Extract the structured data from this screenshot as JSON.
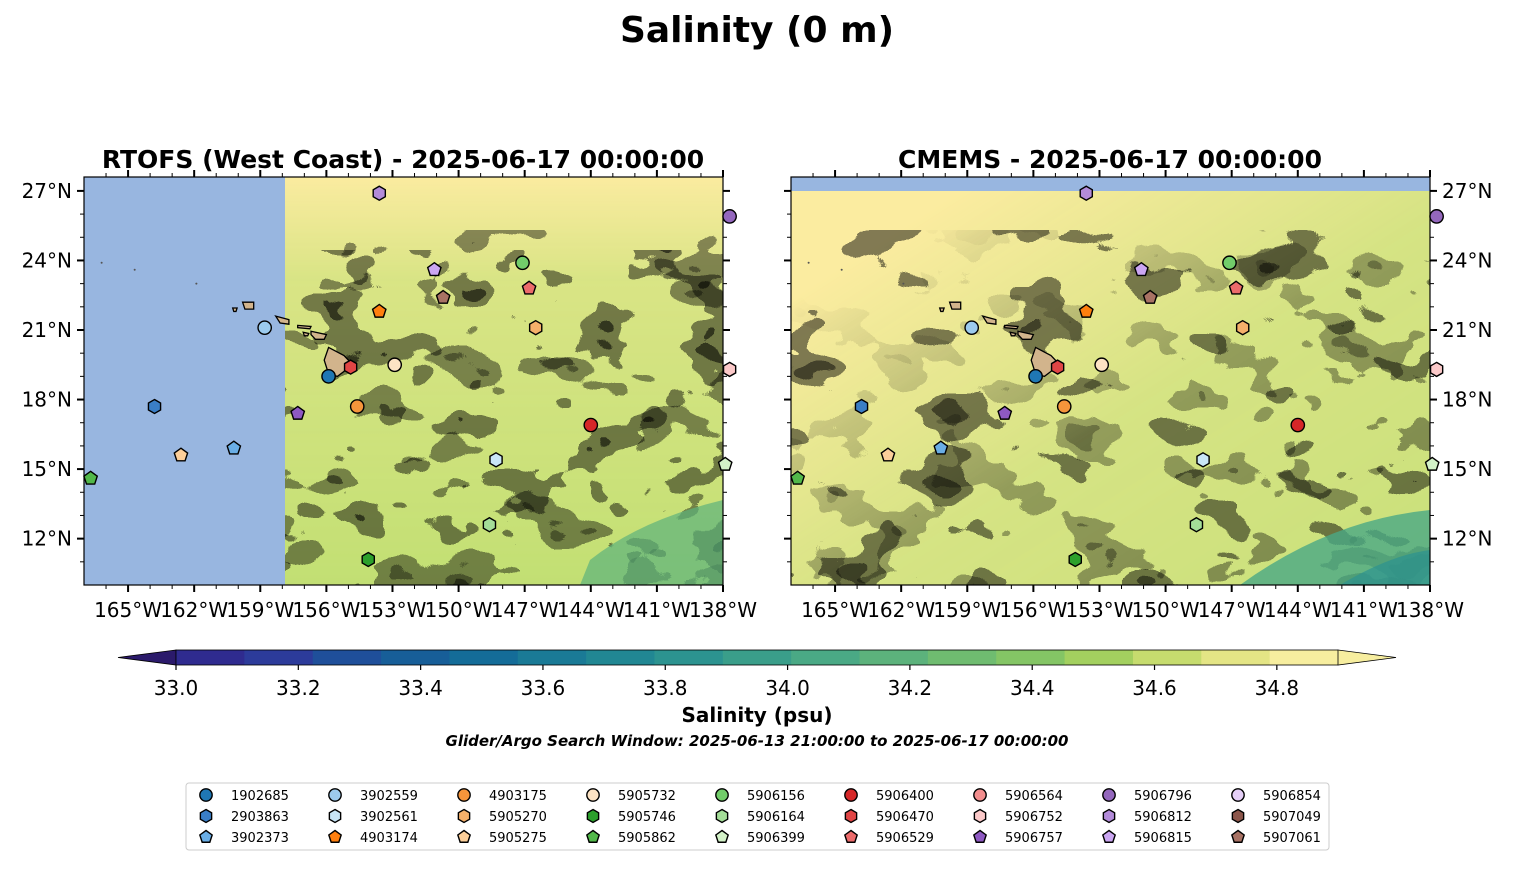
{
  "suptitle": "Salinity (0 m)",
  "panels": [
    {
      "title": "RTOFS (West Coast) - 2025-06-17 00:00:00",
      "tick_side": "left",
      "data_extent_lon": [
        -157.5,
        -137.8
      ]
    },
    {
      "title": "CMEMS - 2025-06-17 00:00:00",
      "tick_side": "right",
      "data_extent_lat_max": 27.1
    }
  ],
  "colorbar": {
    "label": "Salinity (psu)",
    "ticks": [
      "33.0",
      "33.2",
      "33.4",
      "33.6",
      "33.8",
      "34.0",
      "34.2",
      "34.4",
      "34.6",
      "34.8"
    ]
  },
  "caption": "Glider/Argo Search Window: 2025-06-13 21:00:00 to 2025-06-17 00:00:00",
  "colors": {
    "ocean_nodata": "#98b6e0",
    "land": "#d2b48c",
    "high_salinity": "#fbeca0",
    "mid_salinity": "#bcdf76",
    "low_salinity": "#8ccf63"
  },
  "chart_data": {
    "type": "map",
    "variable": "Salinity",
    "unit": "psu",
    "depth_m": 0,
    "lon_range": [
      -167,
      -138
    ],
    "lat_range": [
      10,
      27.6
    ],
    "x_tick_labels": [
      "165°W",
      "162°W",
      "159°W",
      "156°W",
      "153°W",
      "150°W",
      "147°W",
      "144°W",
      "141°W",
      "138°W"
    ],
    "x_tick_values": [
      -165,
      -162,
      -159,
      -156,
      -153,
      -150,
      -147,
      -144,
      -141,
      -138
    ],
    "y_tick_labels": [
      "27°N",
      "24°N",
      "21°N",
      "18°N",
      "15°N",
      "12°N"
    ],
    "y_tick_values": [
      27,
      24,
      21,
      18,
      15,
      12
    ],
    "colorbar_range": [
      33.0,
      34.9
    ],
    "colorbar_levels": [
      "#2b1a6b",
      "#2f2b8f",
      "#2c3b9a",
      "#1f4f9a",
      "#175e98",
      "#146c98",
      "#1a7a96",
      "#218793",
      "#2c9390",
      "#3a9e8a",
      "#4aa985",
      "#5cb27c",
      "#6fbc70",
      "#84c565",
      "#a3d05f",
      "#c6dc6e",
      "#e4e585",
      "#f7ee9f"
    ],
    "platforms": [
      {
        "id": "1902685",
        "marker": "circle",
        "color": "#1f77b4",
        "lon": -155.9,
        "lat": 19.0
      },
      {
        "id": "2903863",
        "marker": "hexagon",
        "color": "#3a7ec6",
        "lon": -163.8,
        "lat": 17.7
      },
      {
        "id": "3902373",
        "marker": "pentagon",
        "color": "#6aaee6",
        "lon": -160.2,
        "lat": 15.9
      },
      {
        "id": "3902559",
        "marker": "circle",
        "color": "#9ccbee",
        "lon": -158.8,
        "lat": 21.1
      },
      {
        "id": "3902561",
        "marker": "hexagon",
        "color": "#c9e6f7",
        "lon": -148.3,
        "lat": 15.4
      },
      {
        "id": "4903174",
        "marker": "pentagon",
        "color": "#ff7f0e",
        "lon": -153.6,
        "lat": 21.8
      },
      {
        "id": "4903175",
        "marker": "circle",
        "color": "#f5953b",
        "lon": -154.6,
        "lat": 17.7
      },
      {
        "id": "5905270",
        "marker": "hexagon",
        "color": "#f5b06a",
        "lon": -146.5,
        "lat": 21.1
      },
      {
        "id": "5905275",
        "marker": "pentagon",
        "color": "#fccf9a",
        "lon": -162.6,
        "lat": 15.6
      },
      {
        "id": "5905732",
        "marker": "circle",
        "color": "#fde3c4",
        "lon": -152.9,
        "lat": 19.5
      },
      {
        "id": "5905746",
        "marker": "hexagon",
        "color": "#2ca02c",
        "lon": -154.1,
        "lat": 11.1
      },
      {
        "id": "5905862",
        "marker": "pentagon",
        "color": "#52b84a",
        "lon": -166.7,
        "lat": 14.6
      },
      {
        "id": "5906156",
        "marker": "circle",
        "color": "#72cd6a",
        "lon": -147.1,
        "lat": 23.9
      },
      {
        "id": "5906164",
        "marker": "hexagon",
        "color": "#a4dd98",
        "lon": -148.6,
        "lat": 12.6
      },
      {
        "id": "5906399",
        "marker": "pentagon",
        "color": "#d3f2c8",
        "lon": -137.9,
        "lat": 15.2
      },
      {
        "id": "5906400",
        "marker": "circle",
        "color": "#d62728",
        "lon": -144.0,
        "lat": 16.9
      },
      {
        "id": "5906470",
        "marker": "hexagon",
        "color": "#e04545",
        "lon": -154.9,
        "lat": 19.4
      },
      {
        "id": "5906529",
        "marker": "pentagon",
        "color": "#ec6b6b",
        "lon": -146.8,
        "lat": 22.8
      },
      {
        "id": "5906564",
        "marker": "circle",
        "color": "#f38e8e",
        "lon": null,
        "lat": null
      },
      {
        "id": "5906752",
        "marker": "hexagon",
        "color": "#fbc9c9",
        "lon": -137.7,
        "lat": 19.3
      },
      {
        "id": "5906757",
        "marker": "pentagon",
        "color": "#8e59c2",
        "lon": -157.3,
        "lat": 17.4
      },
      {
        "id": "5906796",
        "marker": "circle",
        "color": "#9467bd",
        "lon": -137.7,
        "lat": 25.9
      },
      {
        "id": "5906812",
        "marker": "hexagon",
        "color": "#b38bd9",
        "lon": -153.6,
        "lat": 26.9
      },
      {
        "id": "5906815",
        "marker": "pentagon",
        "color": "#cba6f2",
        "lon": -151.1,
        "lat": 23.6
      },
      {
        "id": "5906854",
        "marker": "circle",
        "color": "#e5cff7",
        "lon": null,
        "lat": null
      },
      {
        "id": "5907049",
        "marker": "hexagon",
        "color": "#8c564b",
        "lon": null,
        "lat": null
      },
      {
        "id": "5907061",
        "marker": "pentagon",
        "color": "#a87264",
        "lon": -150.7,
        "lat": 22.4
      }
    ]
  }
}
